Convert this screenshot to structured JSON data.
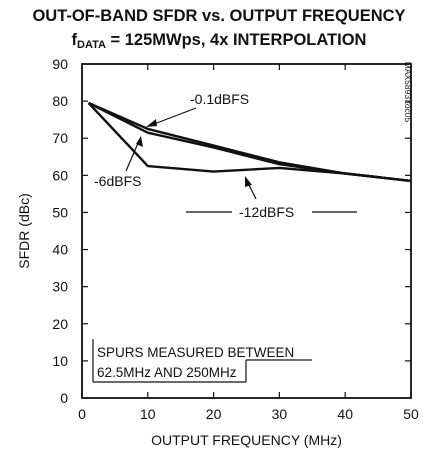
{
  "chart_data": {
    "type": "line",
    "title_line1": "OUT-OF-BAND SFDR vs. OUTPUT FREQUENCY",
    "title_line2_prefix": "f",
    "title_line2_subscript": "DATA",
    "title_line2_suffix": " = 125MWps, 4x INTERPOLATION",
    "xlabel": "OUTPUT FREQUENCY (MHz)",
    "ylabel": "SFDR (dBc)",
    "xlim": [
      0,
      50
    ],
    "ylim": [
      0,
      90
    ],
    "x_ticks": [
      0,
      10,
      20,
      30,
      40,
      50
    ],
    "y_ticks": [
      0,
      10,
      20,
      30,
      40,
      50,
      60,
      70,
      80,
      90
    ],
    "grid": false,
    "series": [
      {
        "name": "-0.1dBFS",
        "x": [
          1,
          10,
          20,
          30,
          40,
          50
        ],
        "y": [
          79.5,
          72.5,
          68,
          63.5,
          60.5,
          58.5
        ]
      },
      {
        "name": "-6dBFS",
        "x": [
          1,
          10,
          20,
          30,
          40,
          50
        ],
        "y": [
          79.5,
          71.5,
          67.5,
          63,
          60.5,
          58.5
        ]
      },
      {
        "name": "-12dBFS",
        "x": [
          1,
          10,
          20,
          30,
          40,
          50
        ],
        "y": [
          79.5,
          62.5,
          61,
          62,
          60.5,
          58.5
        ]
      }
    ],
    "annotations": [
      {
        "id": "ann-01",
        "text": "-0.1dBFS"
      },
      {
        "id": "ann-6",
        "text": "-6dBFS"
      },
      {
        "id": "ann-12",
        "text": "-12dBFS"
      },
      {
        "id": "note1",
        "text": "SPURS MEASURED BETWEEN"
      },
      {
        "id": "note2",
        "text": "62.5MHz AND 250MHz"
      }
    ],
    "watermark": "MAX5893 toc05"
  }
}
